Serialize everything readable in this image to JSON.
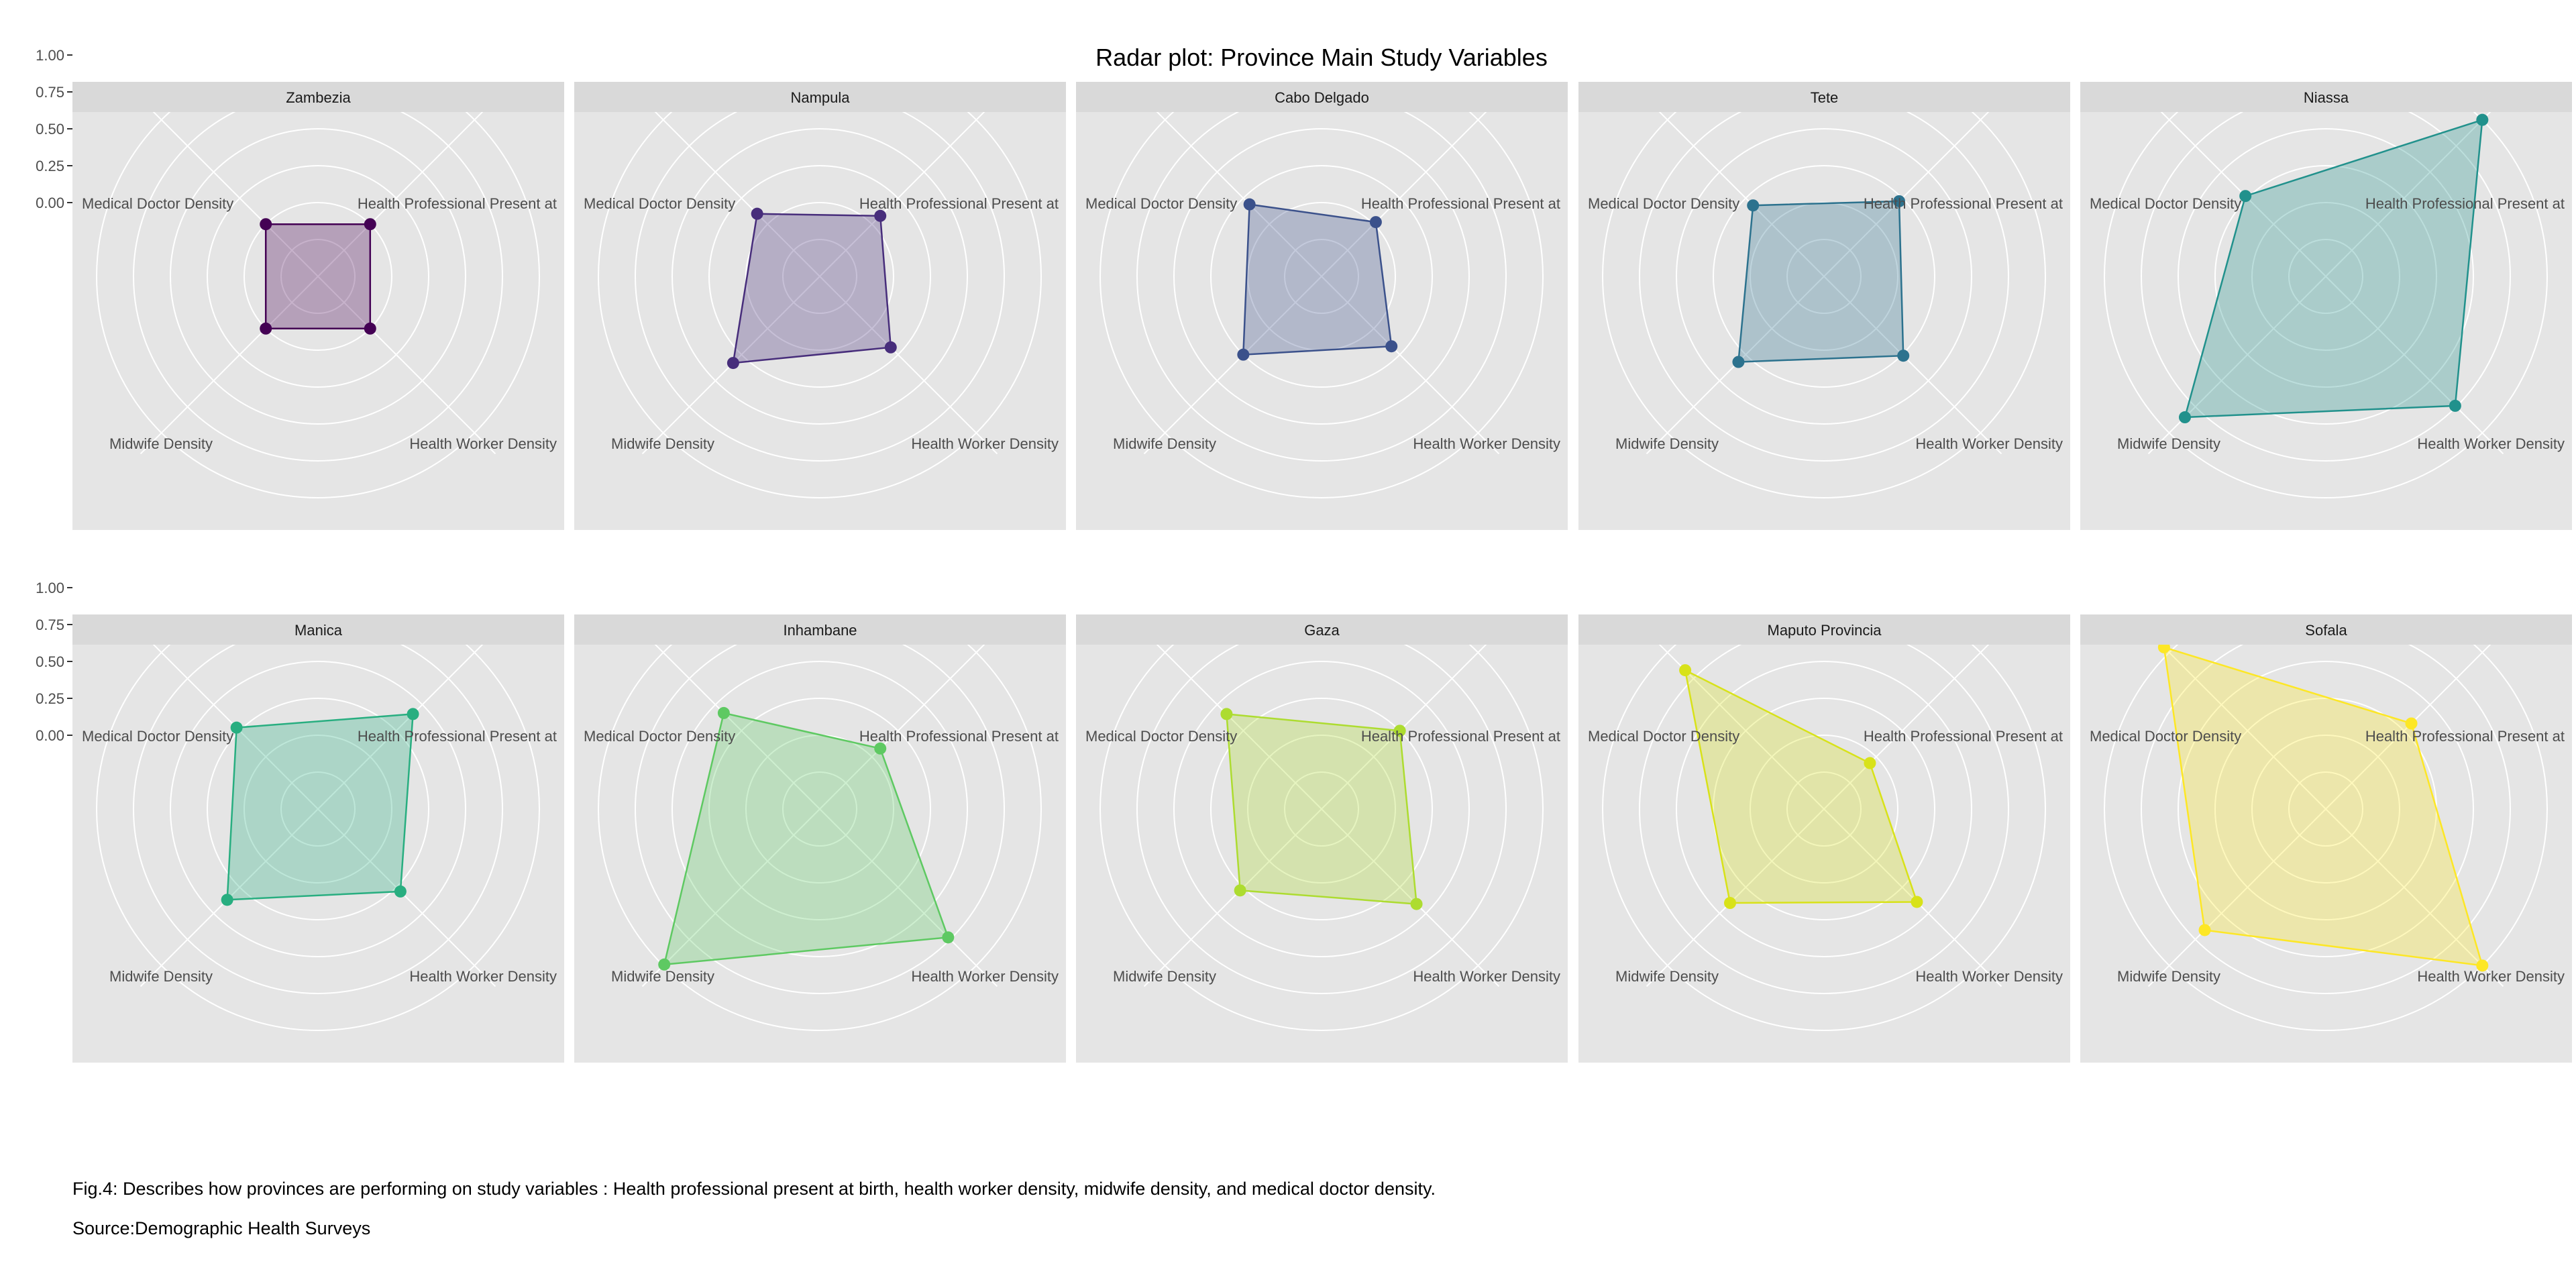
{
  "title": "Radar plot: Province Main Study Variables",
  "caption": "Fig.4: Describes how provinces are performing on study variables : Health professional present at birth, health worker density, midwife density, and medical doctor density.",
  "source": "Source:Demographic Health Surveys",
  "colors": {
    "panel_bg": "#e5e5e5",
    "strip_bg": "#d9d9d9",
    "grid": "#ffffff",
    "text": "#4d4d4d"
  },
  "chart_data": {
    "type": "radar",
    "title": "Radar plot: Province Main Study Variables",
    "axes": [
      "Health Professional Present at",
      "Health Worker Density",
      "Midwife Density",
      "Medical Doctor Density"
    ],
    "radial_ticks": [
      "1.00",
      "0.75",
      "0.50",
      "0.25",
      "0.00"
    ],
    "rlim": [
      -0.5,
      1.0
    ],
    "grid": true,
    "panels": [
      {
        "name": "Zambezia",
        "color": "#440154",
        "values": [
          0.0,
          0.0,
          0.0,
          0.0
        ]
      },
      {
        "name": "Nampula",
        "color": "#472d7b",
        "values": [
          0.08,
          0.18,
          0.33,
          0.1
        ]
      },
      {
        "name": "Cabo Delgado",
        "color": "#3b518b",
        "values": [
          0.02,
          0.17,
          0.25,
          0.19
        ]
      },
      {
        "name": "Tete",
        "color": "#2c728e",
        "values": [
          0.22,
          0.26,
          0.32,
          0.18
        ]
      },
      {
        "name": "Niassa",
        "color": "#21918c",
        "values": [
          1.0,
          0.74,
          0.85,
          0.27
        ]
      },
      {
        "name": "Manica",
        "color": "#28ae80",
        "values": [
          0.41,
          0.29,
          0.37,
          0.28
        ]
      },
      {
        "name": "Inhambane",
        "color": "#5ec962",
        "values": [
          0.08,
          0.73,
          0.99,
          0.42
        ]
      },
      {
        "name": "Gaza",
        "color": "#addc30",
        "values": [
          0.25,
          0.41,
          0.28,
          0.41
        ]
      },
      {
        "name": "Maputo Provincia",
        "color": "#d8e219",
        "values": [
          -0.06,
          0.39,
          0.4,
          0.83
        ]
      },
      {
        "name": "Sofala",
        "color": "#fde725",
        "values": [
          0.32,
          1.0,
          0.66,
          1.05
        ]
      }
    ]
  }
}
